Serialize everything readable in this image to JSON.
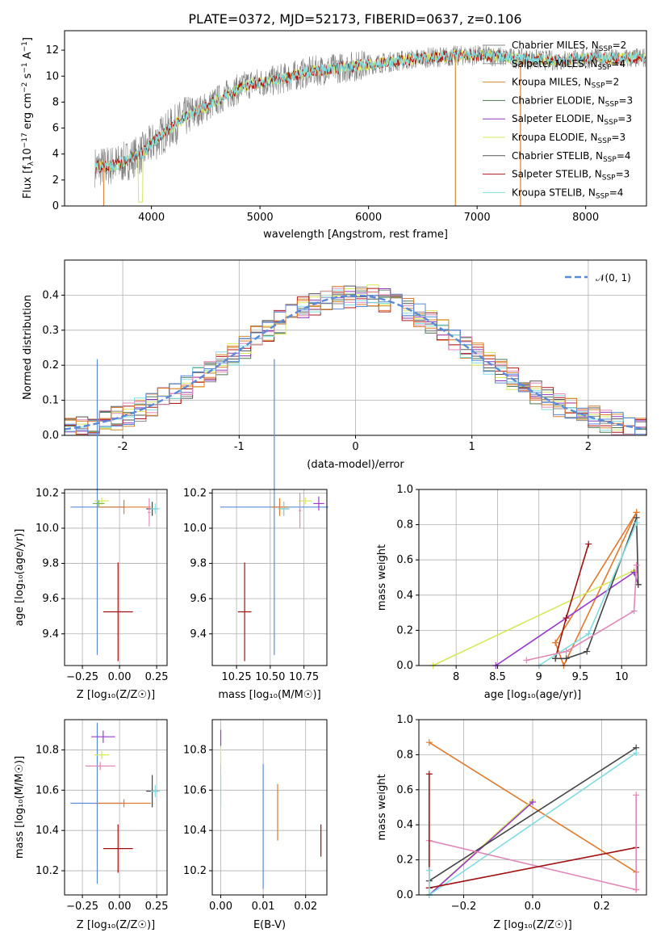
{
  "title": "PLATE=0372, MJD=52173, FIBERID=0637, z=0.106",
  "colors": {
    "Chabrier MILES": "#888888",
    "Salpeter MILES": "#9a9a9a",
    "Kroupa MILES": "#d08a2e",
    "Chabrier ELODIE": "#4a7a50",
    "Salpeter ELODIE": "#8a3ab8",
    "Kroupa ELODIE": "#d7e85a",
    "Chabrier STELIB": "#555555",
    "Salpeter STELIB": "#b01818",
    "Kroupa STELIB": "#7fdde0",
    "normal": "#5a8ad8",
    "blue": "#5a8ad8",
    "orange": "#e07a2e",
    "pink": "#e088b8",
    "green": "#7ab848",
    "purple": "#9a3ac8",
    "darkred": "#a01010",
    "cyan": "#7fdde0",
    "dark": "#444444",
    "yellow": "#d7e85a"
  },
  "legend1": [
    {
      "name": "Chabrier MILES",
      "label_pre": "Chabrier MILES, N",
      "label_val": "=2"
    },
    {
      "name": "Salpeter MILES",
      "label_pre": "Salpeter MILES, N",
      "label_val": "=4"
    },
    {
      "name": "Kroupa MILES",
      "label_pre": "Kroupa MILES, N",
      "label_val": "=2"
    },
    {
      "name": "Chabrier ELODIE",
      "label_pre": "Chabrier ELODIE, N",
      "label_val": "=3"
    },
    {
      "name": "Salpeter ELODIE",
      "label_pre": "Salpeter ELODIE, N",
      "label_val": "=3"
    },
    {
      "name": "Kroupa ELODIE",
      "label_pre": "Kroupa ELODIE, N",
      "label_val": "=3"
    },
    {
      "name": "Chabrier STELIB",
      "label_pre": "Chabrier STELIB, N",
      "label_val": "=4"
    },
    {
      "name": "Salpeter STELIB",
      "label_pre": "Salpeter STELIB, N",
      "label_val": "=3"
    },
    {
      "name": "Kroupa STELIB",
      "label_pre": "Kroupa STELIB, N",
      "label_val": "=4"
    }
  ],
  "legend_sub": "SSP",
  "chart_data": [
    {
      "type": "line",
      "xlabel": "wavelength [Angstrom, rest frame]",
      "ylabel_pre": "Flux [f",
      "ylabel_sub": "λ",
      "ylabel_mid": "10",
      "ylabel_exp1": "−17",
      "ylabel_rest": " erg cm",
      "ylabel_exp2": "−2",
      "ylabel_rest2": " s",
      "ylabel_exp3": "−1",
      "ylabel_rest3": " A",
      "ylabel_exp4": "−1",
      "ylabel_end": "]",
      "xlim": [
        3200,
        8560
      ],
      "ylim": [
        0,
        13.5
      ],
      "xticks": [
        4000,
        5000,
        6000,
        7000,
        8000
      ],
      "yticks": [
        0,
        2,
        4,
        6,
        8,
        10,
        12
      ],
      "series_data_wavelengths": [
        3500,
        3700,
        3900,
        4100,
        4300,
        4500,
        4700,
        4900,
        5100,
        5300,
        5500,
        5700,
        5900,
        6100,
        6300,
        6500,
        6700,
        6900,
        7100,
        7300,
        7500,
        7700,
        7900,
        8100,
        8300,
        8500
      ],
      "model_flux": [
        3.0,
        3.2,
        4.0,
        5.5,
        6.8,
        7.6,
        8.6,
        9.4,
        9.6,
        10.0,
        10.4,
        10.6,
        10.8,
        11.0,
        11.2,
        11.4,
        11.5,
        11.6,
        11.6,
        11.4,
        11.3,
        11.2,
        11.3,
        11.4,
        11.3,
        11.4
      ]
    },
    {
      "type": "line",
      "xlabel": "(data-model)/error",
      "ylabel": "Normed distribution",
      "xlim": [
        -2.5,
        2.5
      ],
      "ylim": [
        0,
        0.5
      ],
      "xticks": [
        -2,
        -1,
        0,
        1,
        2
      ],
      "yticks": [
        0.0,
        0.1,
        0.2,
        0.3,
        0.4
      ],
      "legend": "𝒩(0, 1)",
      "bin_width": 0.1
    },
    {
      "type": "scatter",
      "panel": "age-vs-Z",
      "xlabel": "Z [log₁₀(Z/Z☉)]",
      "ylabel": "age  [log₁₀(age/yr)]",
      "xlim": [
        -0.37,
        0.32
      ],
      "ylim": [
        9.22,
        10.22
      ],
      "xticks": [
        -0.25,
        0.0,
        0.25
      ],
      "xticklabels": [
        "−0.25",
        "0.00",
        "0.25"
      ],
      "yticks": [
        9.4,
        9.6,
        9.8,
        10.0,
        10.2
      ],
      "points": [
        {
          "x": -0.15,
          "y": 10.12,
          "xerr": 0.18,
          "yerr": 0.84,
          "c": "blue"
        },
        {
          "x": -0.01,
          "y": 9.525,
          "xerr": 0.1,
          "yerr": 0.28,
          "c": "darkred"
        },
        {
          "x": 0.03,
          "y": 10.12,
          "xerr": 0.18,
          "yerr": 0.04,
          "c": "orange"
        },
        {
          "x": 0.22,
          "y": 10.11,
          "xerr": 0.04,
          "yerr": 0.04,
          "c": "dark"
        },
        {
          "x": 0.24,
          "y": 10.11,
          "xerr": 0.03,
          "yerr": 0.03,
          "c": "cyan"
        },
        {
          "x": -0.12,
          "y": 10.155,
          "xerr": 0.05,
          "yerr": 0.02,
          "c": "yellow"
        },
        {
          "x": -0.14,
          "y": 10.14,
          "xerr": 0.04,
          "yerr": 0.02,
          "c": "green"
        },
        {
          "x": 0.2,
          "y": 10.09,
          "xerr": 0.01,
          "yerr": 0.08,
          "c": "pink"
        }
      ]
    },
    {
      "type": "scatter",
      "panel": "age-vs-mass",
      "xlabel": "mass [log₁₀(M/M☉)]",
      "xlim": [
        10.07,
        10.92
      ],
      "ylim": [
        9.22,
        10.22
      ],
      "xticks": [
        10.25,
        10.5,
        10.75
      ],
      "xticklabels": [
        "10.25",
        "10.50",
        "10.75"
      ],
      "yticks": [
        9.4,
        9.6,
        9.8,
        10.0,
        10.2
      ],
      "points": [
        {
          "x": 10.53,
          "y": 10.12,
          "xerr": 0.4,
          "yerr": 0.84,
          "c": "blue"
        },
        {
          "x": 10.31,
          "y": 9.525,
          "xerr": 0.05,
          "yerr": 0.28,
          "c": "darkred"
        },
        {
          "x": 10.57,
          "y": 10.12,
          "xerr": 0.06,
          "yerr": 0.05,
          "c": "orange"
        },
        {
          "x": 10.6,
          "y": 10.11,
          "xerr": 0.04,
          "yerr": 0.04,
          "c": "dark"
        },
        {
          "x": 10.6,
          "y": 10.11,
          "xerr": 0.04,
          "yerr": 0.04,
          "c": "cyan"
        },
        {
          "x": 10.76,
          "y": 10.155,
          "xerr": 0.05,
          "yerr": 0.02,
          "c": "yellow"
        },
        {
          "x": 10.86,
          "y": 10.14,
          "xerr": 0.04,
          "yerr": 0.04,
          "c": "purple"
        },
        {
          "x": 10.72,
          "y": 10.1,
          "xerr": 0.01,
          "yerr": 0.1,
          "c": "pink"
        }
      ]
    },
    {
      "type": "line",
      "panel": "massweight-vs-age",
      "xlabel": "age  [log₁₀(age/yr)]",
      "ylabel": "mass weight",
      "xlim": [
        7.55,
        10.3
      ],
      "ylim": [
        0,
        1
      ],
      "xticks": [
        8.0,
        8.5,
        9.0,
        9.5,
        10.0
      ],
      "yticks": [
        0.0,
        0.2,
        0.4,
        0.6,
        0.8,
        1.0
      ],
      "series": [
        {
          "c": "orange",
          "x": [
            9.2,
            9.3,
            10.18
          ],
          "y": [
            0.13,
            0.0,
            0.87
          ]
        },
        {
          "c": "orange2",
          "x": [
            9.2,
            10.18
          ],
          "y": [
            0.13,
            0.87
          ]
        },
        {
          "c": "yellow",
          "x": [
            7.72,
            10.15,
            10.2
          ],
          "y": [
            0.0,
            0.54,
            0.46
          ]
        },
        {
          "c": "purple",
          "x": [
            8.48,
            10.15,
            10.2
          ],
          "y": [
            0.0,
            0.53,
            0.46
          ]
        },
        {
          "c": "darkred",
          "x": [
            9.2,
            9.33,
            9.6
          ],
          "y": [
            0.04,
            0.27,
            0.69
          ]
        },
        {
          "c": "dark",
          "x": [
            9.2,
            9.33,
            9.58,
            10.18,
            10.2
          ],
          "y": [
            0.04,
            0.04,
            0.08,
            0.84,
            0.46
          ]
        },
        {
          "c": "cyan",
          "x": [
            9.0,
            9.6,
            10.18
          ],
          "y": [
            0.0,
            0.18,
            0.81
          ]
        },
        {
          "c": "pink",
          "x": [
            8.85,
            9.33,
            10.15,
            10.18
          ],
          "y": [
            0.03,
            0.08,
            0.31,
            0.57
          ]
        }
      ]
    },
    {
      "type": "scatter",
      "panel": "mass-vs-Z",
      "xlabel": "Z [log₁₀(Z/Z☉)]",
      "ylabel": "mass [log₁₀(M/M☉)]",
      "xlim": [
        -0.37,
        0.32
      ],
      "ylim": [
        10.08,
        10.95
      ],
      "xticks": [
        -0.25,
        0.0,
        0.25
      ],
      "xticklabels": [
        "−0.25",
        "0.00",
        "0.25"
      ],
      "yticks": [
        10.2,
        10.4,
        10.6,
        10.8
      ],
      "points": [
        {
          "x": -0.15,
          "y": 10.535,
          "xerr": 0.18,
          "yerr": 0.4,
          "c": "blue"
        },
        {
          "x": -0.01,
          "y": 10.31,
          "xerr": 0.1,
          "yerr": 0.12,
          "c": "darkred"
        },
        {
          "x": 0.03,
          "y": 10.535,
          "xerr": 0.18,
          "yerr": 0.02,
          "c": "orange"
        },
        {
          "x": 0.22,
          "y": 10.595,
          "xerr": 0.04,
          "yerr": 0.08,
          "c": "dark"
        },
        {
          "x": 0.24,
          "y": 10.595,
          "xerr": 0.03,
          "yerr": 0.03,
          "c": "cyan"
        },
        {
          "x": -0.12,
          "y": 10.775,
          "xerr": 0.05,
          "yerr": 0.02,
          "c": "yellow"
        },
        {
          "x": -0.11,
          "y": 10.865,
          "xerr": 0.08,
          "yerr": 0.03,
          "c": "purple"
        },
        {
          "x": -0.13,
          "y": 10.72,
          "xerr": 0.1,
          "yerr": 0.02,
          "c": "pink"
        }
      ]
    },
    {
      "type": "scatter",
      "panel": "mass-vs-EBV",
      "xlabel": "E(B-V)",
      "xlim": [
        -0.002,
        0.025
      ],
      "ylim": [
        10.08,
        10.95
      ],
      "xticks": [
        0.0,
        0.01,
        0.02
      ],
      "xticklabels": [
        "0.00",
        "0.01",
        "0.02"
      ],
      "yticks": [
        10.2,
        10.4,
        10.6,
        10.8
      ],
      "points": [
        {
          "x": 0.01,
          "y": 10.42,
          "xerr": 0.0,
          "yerr": 0.31,
          "c": "blue"
        },
        {
          "x": 0.0134,
          "y": 10.49,
          "xerr": 0.0,
          "yerr": 0.14,
          "c": "orange"
        },
        {
          "x": 0.0236,
          "y": 10.35,
          "xerr": 0.0,
          "yerr": 0.08,
          "c": "darkred"
        },
        {
          "x": 0.0,
          "y": 10.6,
          "xerr": 0.0,
          "yerr": 0.08,
          "c": "cyan"
        },
        {
          "x": 0.0,
          "y": 10.78,
          "xerr": 0.0,
          "yerr": 0.05,
          "c": "yellow"
        },
        {
          "x": 0.0,
          "y": 10.86,
          "xerr": 0.0,
          "yerr": 0.04,
          "c": "purple"
        }
      ]
    },
    {
      "type": "line",
      "panel": "massweight-vs-Z",
      "xlabel": "Z [log₁₀(Z/Z☉)]",
      "ylabel": "mass weight",
      "xlim": [
        -0.33,
        0.33
      ],
      "ylim": [
        0,
        1
      ],
      "xticks": [
        -0.2,
        0.0,
        0.2
      ],
      "xticklabels": [
        "−0.2",
        "0.0",
        "0.2"
      ],
      "yticks": [
        0.0,
        0.2,
        0.4,
        0.6,
        0.8,
        1.0
      ],
      "series": [
        {
          "c": "orange",
          "x": [
            -0.3,
            0.3
          ],
          "y": [
            0.87,
            0.13
          ]
        },
        {
          "c": "yellow",
          "x": [
            -0.3,
            0.0
          ],
          "y": [
            0.0,
            0.54
          ]
        },
        {
          "c": "purple",
          "x": [
            -0.3,
            0.0
          ],
          "y": [
            0.0,
            0.53
          ]
        },
        {
          "c": "dark",
          "x": [
            -0.3,
            0.3
          ],
          "y": [
            0.08,
            0.84
          ]
        },
        {
          "c": "cyan",
          "x": [
            -0.3,
            0.3
          ],
          "y": [
            0.0,
            0.81
          ]
        },
        {
          "c": "pink",
          "x": [
            -0.3,
            0.3
          ],
          "y": [
            0.31,
            0.03
          ]
        },
        {
          "c": "darkred",
          "x": [
            -0.3,
            0.3
          ],
          "y": [
            0.04,
            0.27
          ]
        },
        {
          "c": "darkredv",
          "x": [
            -0.3,
            -0.3
          ],
          "y": [
            0.04,
            0.69
          ]
        },
        {
          "c": "pinkv",
          "x": [
            0.3,
            0.3
          ],
          "y": [
            0.03,
            0.57
          ]
        },
        {
          "c": "cyanv",
          "x": [
            -0.3,
            -0.3
          ],
          "y": [
            0.0,
            0.14
          ]
        }
      ]
    }
  ]
}
